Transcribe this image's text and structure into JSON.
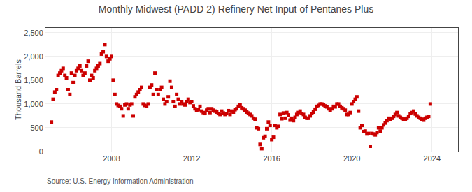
{
  "chart_data": {
    "type": "scatter",
    "title": "Monthly Midwest (PADD 2) Refinery Net Input of Pentanes Plus",
    "ylabel": "Thousand Barrels",
    "annotations": [
      "Source: U.S. Energy Information Administration"
    ],
    "color": "#cc0000",
    "marker": "square",
    "grid": true,
    "xlim": [
      2004.7,
      2025.3
    ],
    "ylim": [
      0,
      2600
    ],
    "xticks": [
      2008,
      2012,
      2016,
      2020,
      2024
    ],
    "yticks": [
      0,
      500,
      {
        "value": 1000,
        "label": "1,000"
      },
      {
        "value": 1500,
        "label": "1,500"
      },
      {
        "value": 2000,
        "label": "2,000"
      },
      {
        "value": 2500,
        "label": "2,500"
      }
    ],
    "x": [
      2005.0,
      2005.083,
      2005.167,
      2005.25,
      2005.333,
      2005.417,
      2005.5,
      2005.583,
      2005.667,
      2005.75,
      2005.833,
      2005.917,
      2006.0,
      2006.083,
      2006.167,
      2006.25,
      2006.333,
      2006.417,
      2006.5,
      2006.583,
      2006.667,
      2006.75,
      2006.833,
      2006.917,
      2007.0,
      2007.083,
      2007.167,
      2007.25,
      2007.333,
      2007.417,
      2007.5,
      2007.583,
      2007.667,
      2007.75,
      2007.833,
      2007.917,
      2008.0,
      2008.083,
      2008.167,
      2008.25,
      2008.333,
      2008.417,
      2008.5,
      2008.583,
      2008.667,
      2008.75,
      2008.833,
      2008.917,
      2009.0,
      2009.083,
      2009.167,
      2009.25,
      2009.333,
      2009.417,
      2009.5,
      2009.583,
      2009.667,
      2009.75,
      2009.833,
      2009.917,
      2010.0,
      2010.083,
      2010.167,
      2010.25,
      2010.333,
      2010.417,
      2010.5,
      2010.583,
      2010.667,
      2010.75,
      2010.833,
      2010.917,
      2011.0,
      2011.083,
      2011.167,
      2011.25,
      2011.333,
      2011.417,
      2011.5,
      2011.583,
      2011.667,
      2011.75,
      2011.833,
      2011.917,
      2012.0,
      2012.083,
      2012.167,
      2012.25,
      2012.333,
      2012.417,
      2012.5,
      2012.583,
      2012.667,
      2012.75,
      2012.833,
      2012.917,
      2013.0,
      2013.083,
      2013.167,
      2013.25,
      2013.333,
      2013.417,
      2013.5,
      2013.583,
      2013.667,
      2013.75,
      2013.833,
      2013.917,
      2014.0,
      2014.083,
      2014.167,
      2014.25,
      2014.333,
      2014.417,
      2014.5,
      2014.583,
      2014.667,
      2014.75,
      2014.833,
      2014.917,
      2015.0,
      2015.083,
      2015.167,
      2015.25,
      2015.333,
      2015.417,
      2015.5,
      2015.583,
      2015.667,
      2015.75,
      2015.833,
      2015.917,
      2016.0,
      2016.083,
      2016.167,
      2016.25,
      2016.333,
      2016.417,
      2016.5,
      2016.583,
      2016.667,
      2016.75,
      2016.833,
      2016.917,
      2017.0,
      2017.083,
      2017.167,
      2017.25,
      2017.333,
      2017.417,
      2017.5,
      2017.583,
      2017.667,
      2017.75,
      2017.833,
      2017.917,
      2018.0,
      2018.083,
      2018.167,
      2018.25,
      2018.333,
      2018.417,
      2018.5,
      2018.583,
      2018.667,
      2018.75,
      2018.833,
      2018.917,
      2019.0,
      2019.083,
      2019.167,
      2019.25,
      2019.333,
      2019.417,
      2019.5,
      2019.583,
      2019.667,
      2019.75,
      2019.833,
      2019.917,
      2020.0,
      2020.083,
      2020.167,
      2020.25,
      2020.333,
      2020.417,
      2020.5,
      2020.583,
      2020.667,
      2020.75,
      2020.833,
      2020.917,
      2021.0,
      2021.083,
      2021.167,
      2021.25,
      2021.333,
      2021.417,
      2021.5,
      2021.583,
      2021.667,
      2021.75,
      2021.833,
      2021.917,
      2022.0,
      2022.083,
      2022.167,
      2022.25,
      2022.333,
      2022.417,
      2022.5,
      2022.583,
      2022.667,
      2022.75,
      2022.833,
      2022.917,
      2023.0,
      2023.083,
      2023.167,
      2023.25,
      2023.333,
      2023.417,
      2023.5,
      2023.583,
      2023.667,
      2023.75,
      2023.833,
      2023.917
    ],
    "values": [
      620,
      1100,
      1250,
      1300,
      1600,
      1650,
      1700,
      1750,
      1600,
      1550,
      1300,
      1200,
      1650,
      1450,
      1600,
      1700,
      1750,
      1800,
      1700,
      1600,
      1650,
      1800,
      1900,
      1500,
      1600,
      1550,
      1700,
      1750,
      1800,
      1850,
      2050,
      2100,
      2250,
      2000,
      1900,
      1950,
      2000,
      1500,
      1200,
      1000,
      970,
      950,
      900,
      750,
      980,
      1000,
      900,
      980,
      1000,
      750,
      1150,
      1200,
      1250,
      1300,
      1350,
      1000,
      970,
      950,
      1000,
      1350,
      1400,
      1200,
      1650,
      1300,
      1200,
      1300,
      1350,
      1100,
      1000,
      1050,
      1150,
      1480,
      1350,
      1050,
      950,
      1200,
      1100,
      1000,
      1050,
      1000,
      980,
      1050,
      1100,
      1030,
      1050,
      960,
      900,
      870,
      880,
      950,
      850,
      820,
      800,
      870,
      900,
      820,
      900,
      870,
      850,
      830,
      800,
      780,
      850,
      810,
      780,
      800,
      860,
      780,
      850,
      830,
      880,
      900,
      950,
      980,
      920,
      900,
      870,
      830,
      810,
      780,
      750,
      700,
      680,
      500,
      480,
      150,
      60,
      290,
      320,
      480,
      620,
      550,
      250,
      300,
      550,
      500,
      530,
      780,
      690,
      810,
      700,
      820,
      770,
      660,
      700,
      650,
      720,
      780,
      820,
      850,
      800,
      780,
      720,
      700,
      700,
      750,
      800,
      830,
      890,
      950,
      970,
      1000,
      1000,
      980,
      960,
      940,
      900,
      870,
      900,
      950,
      940,
      1000,
      1000,
      950,
      920,
      900,
      870,
      780,
      780,
      820,
      1000,
      1050,
      1100,
      1150,
      850,
      500,
      550,
      420,
      430,
      370,
      380,
      110,
      380,
      370,
      350,
      400,
      500,
      430,
      500,
      560,
      600,
      650,
      700,
      680,
      700,
      740,
      780,
      820,
      750,
      720,
      700,
      680,
      680,
      700,
      740,
      800,
      820,
      850,
      790,
      750,
      720,
      700,
      680,
      660,
      700,
      720,
      740,
      1000
    ]
  }
}
